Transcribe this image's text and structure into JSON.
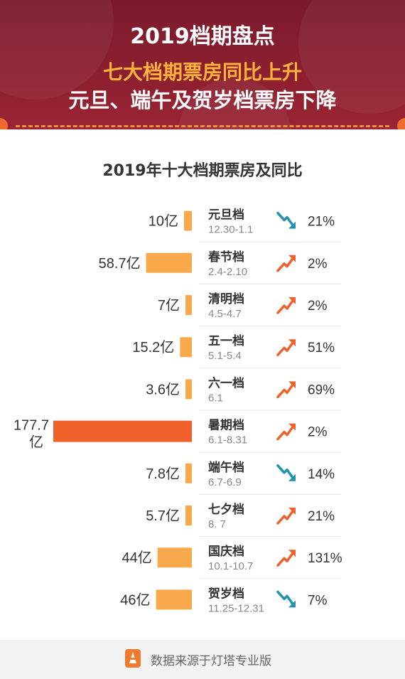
{
  "header": {
    "title": "2019档期盘点",
    "subtitle_1": "七大档期票房同比上升",
    "subtitle_2": "元旦、端午及贺岁档票房下降"
  },
  "colors": {
    "header_bg": "#8b1f2f",
    "accent": "#ffb23a",
    "bar": "#f7a94c",
    "bar_max": "#f0602b",
    "up_arrow": "#f0602b",
    "down_arrow": "#1f93b0"
  },
  "chart_data": {
    "type": "bar",
    "title": "2019年十大档期票房及同比",
    "value_unit": "亿",
    "categories": [
      "元旦档",
      "春节档",
      "清明档",
      "五一档",
      "六一档",
      "暑期档",
      "端午档",
      "七夕档",
      "国庆档",
      "贺岁档"
    ],
    "date_ranges": [
      "12.30-1.1",
      "2.4-2.10",
      "4.5-4.7",
      "5.1-5.4",
      "6.1",
      "6.1-8.31",
      "6.7-6.9",
      "8. 7",
      "10.1-10.7",
      "11.25-12.31"
    ],
    "values": [
      10,
      58.7,
      7,
      15.2,
      3.6,
      177.7,
      7.8,
      5.7,
      44,
      46
    ],
    "value_labels": [
      "10亿",
      "58.7亿",
      "7亿",
      "15.2亿",
      "3.6亿",
      "177.7",
      "7.8亿",
      "5.7亿",
      "44亿",
      "46亿"
    ],
    "value_label_second_line": [
      "",
      "",
      "",
      "",
      "",
      "亿",
      "",
      "",
      "",
      ""
    ],
    "trend": [
      "down",
      "up",
      "up",
      "up",
      "up",
      "up",
      "down",
      "up",
      "up",
      "down"
    ],
    "yoy_labels": [
      "21%",
      "2%",
      "2%",
      "51%",
      "69%",
      "2%",
      "14%",
      "21%",
      "131%",
      "7%"
    ]
  },
  "footer": {
    "source_text": "数据来源于灯塔专业版",
    "icon": "lighthouse-app-icon"
  }
}
